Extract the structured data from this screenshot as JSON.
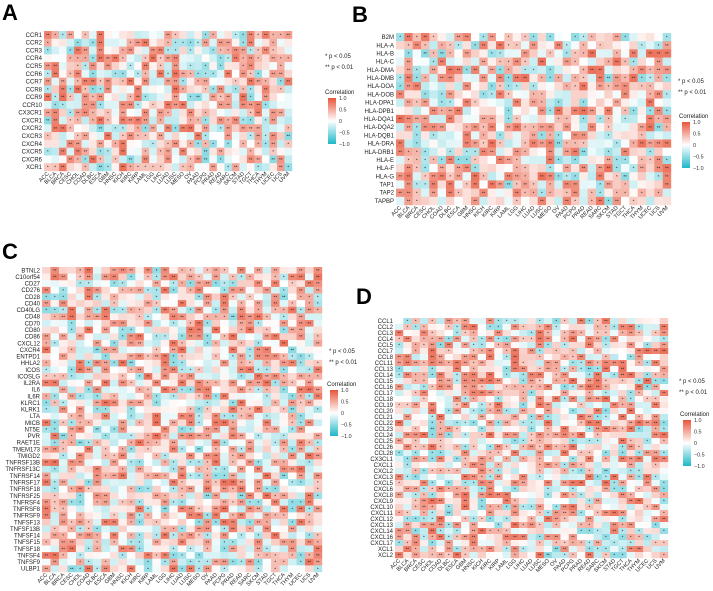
{
  "legend": {
    "sig1": "* p < 0.05",
    "sig2": "** p < 0.01",
    "title": "Correlation",
    "ticks": [
      "1.0",
      "0.5",
      "0",
      "−0.5",
      "−1.0"
    ],
    "colors": {
      "high": "#e8553a",
      "mid": "#ffffff",
      "low": "#1fb7c8"
    }
  },
  "chart_data": [
    {
      "type": "heatmap",
      "panel": "A",
      "rows": [
        "CCR1",
        "CCR2",
        "CCR3",
        "CCR4",
        "CCR5",
        "CCR6",
        "CCR7",
        "CCR8",
        "CCR9",
        "CCR10",
        "CX3CR1",
        "CXCR1",
        "CXCR2",
        "CXCR3",
        "CXCR4",
        "CXCR5",
        "CXCR6",
        "XCR1"
      ],
      "columns": [
        "ACC",
        "BLCA",
        "BRCA",
        "CESC",
        "CHOL",
        "COAD",
        "DLBC",
        "ESCA",
        "GBM",
        "HNSC",
        "KICH",
        "KIRC",
        "KIRP",
        "LAML",
        "LGG",
        "LIHC",
        "LUAD",
        "LUSC",
        "MESO",
        "OV",
        "PAAD",
        "PCPG",
        "PRAD",
        "READ",
        "SARC",
        "SKCM",
        "STAD",
        "TGCT",
        "THCA",
        "THYM",
        "UCEC",
        "UCS",
        "UVM"
      ],
      "zlim": [
        -1,
        1
      ]
    },
    {
      "type": "heatmap",
      "panel": "B",
      "rows": [
        "B2M",
        "HLA-A",
        "HLA-B",
        "HLA-C",
        "HLA-DMA",
        "HLA-DMB",
        "HLA-DOA",
        "HLA-DOB",
        "HLA-DPA1",
        "HLA-DPB1",
        "HLA-DQA1",
        "HLA-DQA2",
        "HLA-DQB1",
        "HLA-DRA",
        "HLA-DRB1",
        "HLA-E",
        "HLA-F",
        "HLA-G",
        "TAP1",
        "TAP2",
        "TAPBP"
      ],
      "columns": [
        "ACC",
        "BLCA",
        "BRCA",
        "CESC",
        "CHOL",
        "COAD",
        "DLBC",
        "ESCA",
        "GBM",
        "HNSC",
        "KICH",
        "KIRC",
        "KIRP",
        "LAML",
        "LGG",
        "LIHC",
        "LUAD",
        "LUSC",
        "MESO",
        "OV",
        "PAAD",
        "PCPG",
        "PRAD",
        "READ",
        "SARC",
        "SKCM",
        "STAD",
        "TGCT",
        "THCA",
        "THYM",
        "UCEC",
        "UCS",
        "UVM"
      ],
      "zlim": [
        -1,
        1
      ]
    },
    {
      "type": "heatmap",
      "panel": "C",
      "rows": [
        "BTNL2",
        "C10orf54",
        "CD27",
        "CD276",
        "CD28",
        "CD40",
        "CD40LG",
        "CD48",
        "CD70",
        "CD80",
        "CD86",
        "CXCL12",
        "CXCR4",
        "ENTPD1",
        "HHLA2",
        "ICOS",
        "ICOSLG",
        "IL2RA",
        "IL6",
        "IL6R",
        "KLRC1",
        "KLRK1",
        "LTA",
        "MICB",
        "NT5E",
        "PVR",
        "RAET1E",
        "TMEM173",
        "TMIGD2",
        "TNFRSF13B",
        "TNFRSF13C",
        "TNFRSF14",
        "TNFRSF17",
        "TNFRSF18",
        "TNFRSF25",
        "TNFRSF4",
        "TNFRSF8",
        "TNFRSF9",
        "TNFSF13",
        "TNFSF13B",
        "TNFSF14",
        "TNFSF15",
        "TNFSF18",
        "TNFSF4",
        "TNFSF9",
        "ULBP1"
      ],
      "columns": [
        "ACC",
        "BLCA",
        "BRCA",
        "CESC",
        "CHOL",
        "COAD",
        "DLBC",
        "ESCA",
        "GBM",
        "HNSC",
        "KICH",
        "KIRC",
        "KIRP",
        "LAML",
        "LGG",
        "LIHC",
        "LUAD",
        "LUSC",
        "MESO",
        "OV",
        "PAAD",
        "PCPG",
        "PRAD",
        "READ",
        "SARC",
        "SKCM",
        "STAD",
        "TGCT",
        "THCA",
        "THYM",
        "UCEC",
        "UCS",
        "UVM"
      ],
      "zlim": [
        -1,
        1
      ]
    },
    {
      "type": "heatmap",
      "panel": "D",
      "rows": [
        "CCL1",
        "CCL2",
        "CCL3",
        "CCL4",
        "CCL5",
        "CCL7",
        "CCL8",
        "CCL11",
        "CCL13",
        "CCL14",
        "CCL15",
        "CCL16",
        "CCL17",
        "CCL18",
        "CCL19",
        "CCL20",
        "CCL21",
        "CCL22",
        "CCL23",
        "CCL24",
        "CCL25",
        "CCL26",
        "CCL28",
        "CX3CL1",
        "CXCL1",
        "CXCL2",
        "CXCL3",
        "CXCL5",
        "CXCL6",
        "CXCL8",
        "CXCL9",
        "CXCL10",
        "CXCL11",
        "CXCL12",
        "CXCL13",
        "CXCL14",
        "CXCL16",
        "CXCL17",
        "XCL1",
        "XCL2"
      ],
      "columns": [
        "ACC",
        "BLCA",
        "BRCA",
        "CESC",
        "CHOL",
        "COAD",
        "DLBC",
        "ESCA",
        "GBM",
        "HNSC",
        "KICH",
        "KIRC",
        "KIRP",
        "LAML",
        "LGG",
        "LIHC",
        "LUAD",
        "LUSC",
        "MESO",
        "OV",
        "PAAD",
        "PCPG",
        "PRAD",
        "READ",
        "SARC",
        "SKCM",
        "STAD",
        "TGCT",
        "THCA",
        "THYM",
        "UCEC",
        "UCS",
        "UVM"
      ],
      "zlim": [
        -1,
        1
      ]
    }
  ]
}
